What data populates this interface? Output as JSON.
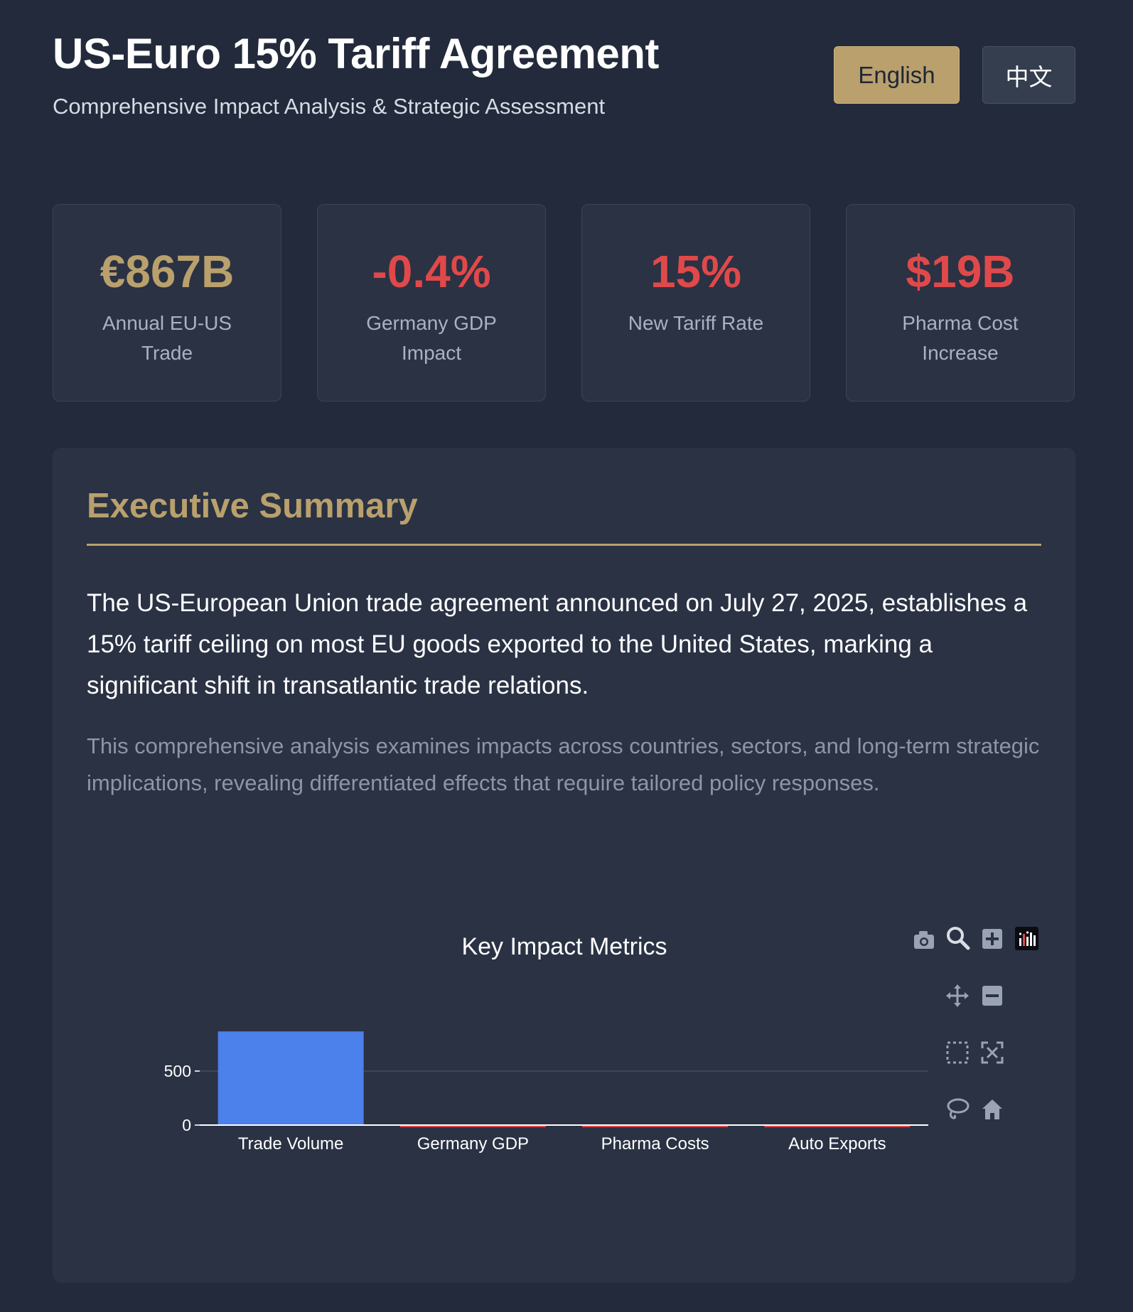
{
  "header": {
    "title": "US-Euro 15% Tariff Agreement",
    "subtitle": "Comprehensive Impact Analysis & Strategic Assessment"
  },
  "language": {
    "english_label": "English",
    "chinese_label": "中文",
    "active": "English"
  },
  "stats": [
    {
      "value": "€867B",
      "label": "Annual EU-US Trade",
      "color": "#b9a06c"
    },
    {
      "value": "-0.4%",
      "label": "Germany GDP Impact",
      "color": "#e0494a"
    },
    {
      "value": "15%",
      "label": "New Tariff Rate",
      "color": "#e0494a"
    },
    {
      "value": "$19B",
      "label": "Pharma Cost Increase",
      "color": "#e0494a"
    }
  ],
  "summary": {
    "title": "Executive Summary",
    "lead": "The US-European Union trade agreement announced on July 27, 2025, establishes a 15% tariff ceiling on most EU goods exported to the United States, marking a significant shift in transatlantic trade relations.",
    "body": "This comprehensive analysis examines impacts across countries, sectors, and long-term strategic implications, revealing differentiated effects that require tailored policy responses."
  },
  "chart_data": {
    "type": "bar",
    "title": "Key Impact Metrics",
    "categories": [
      "Trade Volume",
      "Germany GDP",
      "Pharma Costs",
      "Auto Exports"
    ],
    "values": [
      867,
      -0.4,
      -19,
      -15
    ],
    "colors": [
      "#4c80ea",
      "#e0494a",
      "#e0494a",
      "#e0494a"
    ],
    "yticks": [
      0,
      500
    ],
    "ylim": [
      -60,
      950
    ],
    "xlabel": "",
    "ylabel": ""
  },
  "modebar": [
    "camera-icon",
    "zoom-icon",
    "zoom-in-icon",
    "plotly-logo-icon",
    "pan-icon",
    "zoom-out-icon",
    "box-select-icon",
    "autoscale-icon",
    "lasso-icon",
    "home-icon"
  ]
}
